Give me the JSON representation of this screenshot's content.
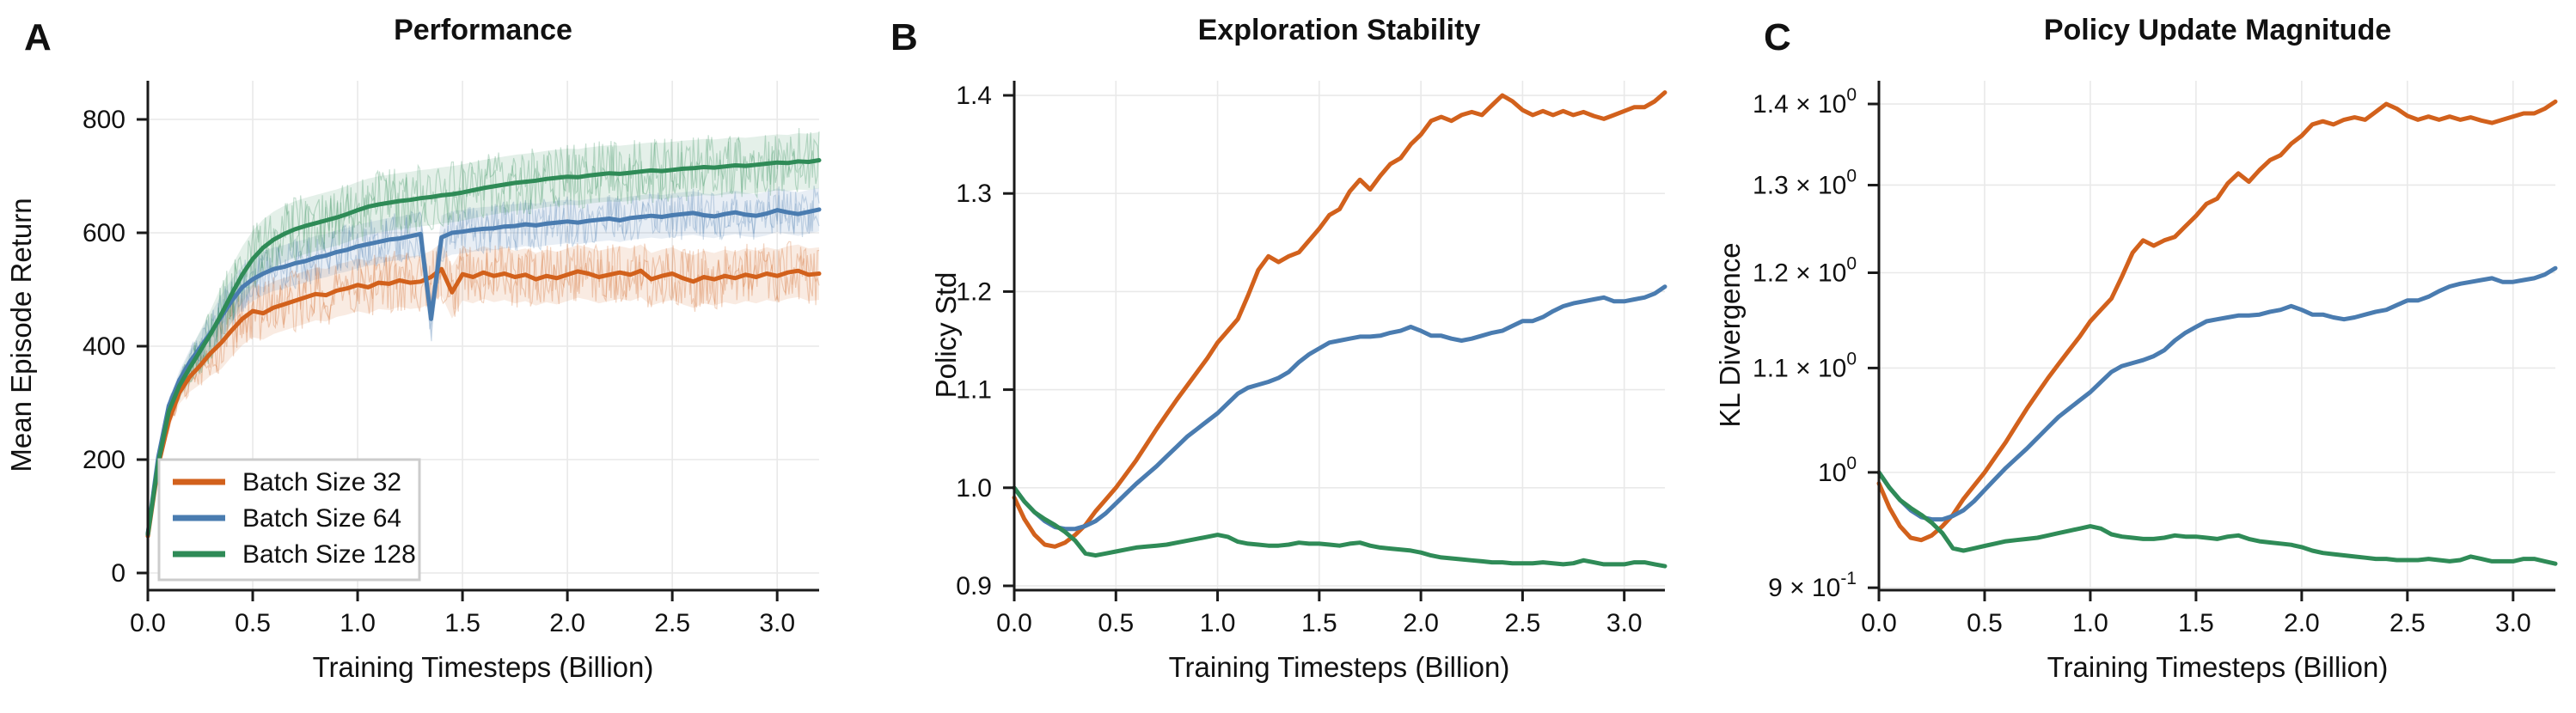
{
  "figure": {
    "background": "#ffffff",
    "grid_color": "#e9e9e9",
    "spine_color": "#1a1a1a",
    "text_color": "#111111"
  },
  "legend": {
    "position": "lower left",
    "entries": [
      {
        "label": "Batch Size 32",
        "color": "#d2611c"
      },
      {
        "label": "Batch Size 64",
        "color": "#4a7cb0"
      },
      {
        "label": "Batch Size 128",
        "color": "#2f8b57"
      }
    ]
  },
  "chart_data": [
    {
      "type": "line",
      "panel_label": "A",
      "title": "Performance",
      "xlabel": "Training Timesteps (Billion)",
      "ylabel": "Mean Episode Return",
      "yscale": "linear",
      "grid": true,
      "legend_position": "lower left",
      "xlim": [
        0,
        3.2
      ],
      "ylim": [
        -30.3,
        868.2
      ],
      "x_ticks": [
        0.0,
        0.5,
        1.0,
        1.5,
        2.0,
        2.5,
        3.0
      ],
      "x_tick_labels": [
        "0.0",
        "0.5",
        "1.0",
        "1.5",
        "2.0",
        "2.5",
        "3.0"
      ],
      "y_ticks": [
        0,
        200,
        400,
        600,
        800
      ],
      "y_tick_labels": [
        "0",
        "200",
        "400",
        "600",
        "800"
      ],
      "x": [
        0,
        0.05,
        0.1,
        0.15,
        0.2,
        0.25,
        0.3,
        0.35,
        0.4,
        0.45,
        0.5,
        0.55,
        0.6,
        0.65,
        0.7,
        0.75,
        0.8,
        0.85,
        0.9,
        0.95,
        1.0,
        1.05,
        1.1,
        1.15,
        1.2,
        1.25,
        1.3,
        1.35,
        1.4,
        1.45,
        1.5,
        1.55,
        1.6,
        1.65,
        1.7,
        1.75,
        1.8,
        1.85,
        1.9,
        1.95,
        2.0,
        2.05,
        2.1,
        2.15,
        2.2,
        2.25,
        2.3,
        2.35,
        2.4,
        2.45,
        2.5,
        2.55,
        2.6,
        2.65,
        2.7,
        2.75,
        2.8,
        2.85,
        2.9,
        2.95,
        3.0,
        3.05,
        3.1,
        3.15,
        3.2
      ],
      "series": [
        {
          "name": "Batch Size 32",
          "color": "#d2611c",
          "band_halfwidth": 58,
          "values": [
            65,
            190,
            268,
            318,
            346,
            366,
            388,
            406,
            428,
            448,
            462,
            458,
            468,
            474,
            480,
            486,
            492,
            490,
            498,
            502,
            508,
            504,
            512,
            510,
            516,
            512,
            514,
            522,
            536,
            495,
            527,
            522,
            530,
            524,
            528,
            522,
            526,
            518,
            524,
            520,
            526,
            532,
            528,
            522,
            526,
            530,
            526,
            533,
            518,
            524,
            528,
            520,
            514,
            522,
            518,
            524,
            520,
            526,
            522,
            528,
            524,
            530,
            533,
            526,
            528
          ]
        },
        {
          "name": "Batch Size 64",
          "color": "#4a7cb0",
          "band_halfwidth": 48,
          "values": [
            70,
            205,
            295,
            340,
            372,
            398,
            424,
            452,
            480,
            504,
            518,
            528,
            536,
            540,
            546,
            550,
            556,
            560,
            566,
            570,
            576,
            580,
            584,
            588,
            590,
            594,
            598,
            448,
            592,
            600,
            602,
            605,
            607,
            608,
            611,
            612,
            615,
            613,
            616,
            618,
            620,
            618,
            621,
            623,
            625,
            622,
            626,
            628,
            630,
            628,
            631,
            633,
            635,
            631,
            629,
            633,
            636,
            632,
            630,
            634,
            640,
            636,
            633,
            637,
            641
          ]
        },
        {
          "name": "Batch Size 128",
          "color": "#2f8b57",
          "band_halfwidth": 62,
          "values": [
            68,
            195,
            285,
            330,
            362,
            392,
            422,
            456,
            492,
            526,
            554,
            574,
            588,
            598,
            606,
            612,
            617,
            622,
            627,
            633,
            640,
            646,
            650,
            653,
            656,
            658,
            661,
            663,
            666,
            668,
            671,
            675,
            679,
            682,
            685,
            688,
            690,
            692,
            695,
            697,
            699,
            698,
            701,
            703,
            705,
            704,
            706,
            708,
            710,
            709,
            711,
            713,
            714,
            716,
            715,
            717,
            719,
            718,
            720,
            722,
            724,
            723,
            726,
            725,
            728
          ]
        }
      ]
    },
    {
      "type": "line",
      "panel_label": "B",
      "title": "Exploration Stability",
      "xlabel": "Training Timesteps (Billion)",
      "ylabel": "Policy Std",
      "yscale": "linear",
      "grid": true,
      "xlim": [
        0,
        3.2
      ],
      "ylim": [
        0.8956,
        1.4149
      ],
      "x_ticks": [
        0.0,
        0.5,
        1.0,
        1.5,
        2.0,
        2.5,
        3.0
      ],
      "x_tick_labels": [
        "0.0",
        "0.5",
        "1.0",
        "1.5",
        "2.0",
        "2.5",
        "3.0"
      ],
      "y_ticks": [
        0.9,
        1.0,
        1.1,
        1.2,
        1.3,
        1.4
      ],
      "y_tick_labels": [
        "0.9",
        "1.0",
        "1.1",
        "1.2",
        "1.3",
        "1.4"
      ],
      "x": [
        0,
        0.05,
        0.1,
        0.15,
        0.2,
        0.25,
        0.3,
        0.35,
        0.4,
        0.45,
        0.5,
        0.55,
        0.6,
        0.65,
        0.7,
        0.75,
        0.8,
        0.85,
        0.9,
        0.95,
        1.0,
        1.05,
        1.1,
        1.15,
        1.2,
        1.25,
        1.3,
        1.35,
        1.4,
        1.45,
        1.5,
        1.55,
        1.6,
        1.65,
        1.7,
        1.75,
        1.8,
        1.85,
        1.9,
        1.95,
        2.0,
        2.05,
        2.1,
        2.15,
        2.2,
        2.25,
        2.3,
        2.35,
        2.4,
        2.45,
        2.5,
        2.55,
        2.6,
        2.65,
        2.7,
        2.75,
        2.8,
        2.85,
        2.9,
        2.95,
        3.0,
        3.05,
        3.1,
        3.15,
        3.2
      ],
      "series": [
        {
          "name": "Batch Size 32",
          "color": "#d2611c",
          "values": [
            0.99,
            0.968,
            0.952,
            0.942,
            0.94,
            0.944,
            0.952,
            0.962,
            0.976,
            0.988,
            1.0,
            1.014,
            1.028,
            1.044,
            1.06,
            1.075,
            1.09,
            1.104,
            1.118,
            1.132,
            1.148,
            1.16,
            1.172,
            1.196,
            1.222,
            1.236,
            1.23,
            1.236,
            1.24,
            1.252,
            1.264,
            1.278,
            1.284,
            1.302,
            1.314,
            1.304,
            1.318,
            1.33,
            1.336,
            1.35,
            1.36,
            1.374,
            1.378,
            1.374,
            1.38,
            1.383,
            1.38,
            1.39,
            1.4,
            1.394,
            1.385,
            1.38,
            1.384,
            1.38,
            1.384,
            1.38,
            1.383,
            1.379,
            1.376,
            1.38,
            1.384,
            1.388,
            1.388,
            1.394,
            1.403
          ]
        },
        {
          "name": "Batch Size 64",
          "color": "#4a7cb0",
          "values": [
            1.0,
            0.986,
            0.975,
            0.966,
            0.96,
            0.958,
            0.958,
            0.961,
            0.966,
            0.974,
            0.984,
            0.994,
            1.004,
            1.013,
            1.022,
            1.032,
            1.042,
            1.052,
            1.06,
            1.068,
            1.076,
            1.086,
            1.096,
            1.102,
            1.105,
            1.108,
            1.112,
            1.118,
            1.128,
            1.136,
            1.142,
            1.148,
            1.15,
            1.152,
            1.154,
            1.154,
            1.155,
            1.158,
            1.16,
            1.164,
            1.16,
            1.155,
            1.155,
            1.152,
            1.15,
            1.152,
            1.155,
            1.158,
            1.16,
            1.165,
            1.17,
            1.17,
            1.174,
            1.18,
            1.185,
            1.188,
            1.19,
            1.192,
            1.194,
            1.19,
            1.19,
            1.192,
            1.194,
            1.198,
            1.205
          ]
        },
        {
          "name": "Batch Size 128",
          "color": "#2f8b57",
          "values": [
            1.0,
            0.986,
            0.975,
            0.968,
            0.962,
            0.955,
            0.946,
            0.933,
            0.931,
            0.933,
            0.935,
            0.937,
            0.939,
            0.94,
            0.941,
            0.942,
            0.944,
            0.946,
            0.948,
            0.95,
            0.952,
            0.95,
            0.945,
            0.943,
            0.942,
            0.941,
            0.941,
            0.942,
            0.944,
            0.943,
            0.943,
            0.942,
            0.941,
            0.943,
            0.944,
            0.941,
            0.939,
            0.938,
            0.937,
            0.936,
            0.934,
            0.931,
            0.929,
            0.928,
            0.927,
            0.926,
            0.925,
            0.924,
            0.924,
            0.923,
            0.923,
            0.923,
            0.924,
            0.923,
            0.922,
            0.923,
            0.926,
            0.924,
            0.922,
            0.922,
            0.922,
            0.924,
            0.924,
            0.922,
            0.92
          ]
        }
      ]
    },
    {
      "type": "line",
      "panel_label": "C",
      "title": "Policy Update Magnitude",
      "xlabel": "Training Timesteps (Billion)",
      "ylabel": "KL Divergence",
      "yscale": "log",
      "grid": true,
      "xlim": [
        0,
        3.2
      ],
      "ylim": [
        0.898,
        1.43
      ],
      "x_ticks": [
        0.0,
        0.5,
        1.0,
        1.5,
        2.0,
        2.5,
        3.0
      ],
      "x_tick_labels": [
        "0.0",
        "0.5",
        "1.0",
        "1.5",
        "2.0",
        "2.5",
        "3.0"
      ],
      "y_ticks": [
        0.9,
        1.0,
        1.1,
        1.2,
        1.3,
        1.4
      ],
      "y_tick_labels": [
        "9 × 10^-1",
        "10^0",
        "1.1 × 10^0",
        "1.2 × 10^0",
        "1.3 × 10^0",
        "1.4 × 10^0"
      ],
      "x": [
        0,
        0.05,
        0.1,
        0.15,
        0.2,
        0.25,
        0.3,
        0.35,
        0.4,
        0.45,
        0.5,
        0.55,
        0.6,
        0.65,
        0.7,
        0.75,
        0.8,
        0.85,
        0.9,
        0.95,
        1.0,
        1.05,
        1.1,
        1.15,
        1.2,
        1.25,
        1.3,
        1.35,
        1.4,
        1.45,
        1.5,
        1.55,
        1.6,
        1.65,
        1.7,
        1.75,
        1.8,
        1.85,
        1.9,
        1.95,
        2.0,
        2.05,
        2.1,
        2.15,
        2.2,
        2.25,
        2.3,
        2.35,
        2.4,
        2.45,
        2.5,
        2.55,
        2.6,
        2.65,
        2.7,
        2.75,
        2.8,
        2.85,
        2.9,
        2.95,
        3.0,
        3.05,
        3.1,
        3.15,
        3.2
      ],
      "series": [
        {
          "name": "Batch Size 32",
          "color": "#d2611c",
          "values": [
            0.99,
            0.968,
            0.952,
            0.942,
            0.94,
            0.944,
            0.952,
            0.962,
            0.976,
            0.988,
            1.0,
            1.014,
            1.028,
            1.044,
            1.06,
            1.075,
            1.09,
            1.104,
            1.118,
            1.132,
            1.148,
            1.16,
            1.172,
            1.196,
            1.222,
            1.236,
            1.23,
            1.236,
            1.24,
            1.252,
            1.264,
            1.278,
            1.284,
            1.302,
            1.314,
            1.304,
            1.318,
            1.33,
            1.336,
            1.35,
            1.36,
            1.374,
            1.378,
            1.374,
            1.38,
            1.383,
            1.38,
            1.39,
            1.4,
            1.394,
            1.385,
            1.38,
            1.384,
            1.38,
            1.384,
            1.38,
            1.383,
            1.379,
            1.376,
            1.38,
            1.384,
            1.388,
            1.388,
            1.394,
            1.403
          ]
        },
        {
          "name": "Batch Size 64",
          "color": "#4a7cb0",
          "values": [
            1.0,
            0.986,
            0.975,
            0.966,
            0.96,
            0.958,
            0.958,
            0.961,
            0.966,
            0.974,
            0.984,
            0.994,
            1.004,
            1.013,
            1.022,
            1.032,
            1.042,
            1.052,
            1.06,
            1.068,
            1.076,
            1.086,
            1.096,
            1.102,
            1.105,
            1.108,
            1.112,
            1.118,
            1.128,
            1.136,
            1.142,
            1.148,
            1.15,
            1.152,
            1.154,
            1.154,
            1.155,
            1.158,
            1.16,
            1.164,
            1.16,
            1.155,
            1.155,
            1.152,
            1.15,
            1.152,
            1.155,
            1.158,
            1.16,
            1.165,
            1.17,
            1.17,
            1.174,
            1.18,
            1.185,
            1.188,
            1.19,
            1.192,
            1.194,
            1.19,
            1.19,
            1.192,
            1.194,
            1.198,
            1.205
          ]
        },
        {
          "name": "Batch Size 128",
          "color": "#2f8b57",
          "values": [
            1.0,
            0.986,
            0.975,
            0.968,
            0.962,
            0.955,
            0.946,
            0.933,
            0.931,
            0.933,
            0.935,
            0.937,
            0.939,
            0.94,
            0.941,
            0.942,
            0.944,
            0.946,
            0.948,
            0.95,
            0.952,
            0.95,
            0.945,
            0.943,
            0.942,
            0.941,
            0.941,
            0.942,
            0.944,
            0.943,
            0.943,
            0.942,
            0.941,
            0.943,
            0.944,
            0.941,
            0.939,
            0.938,
            0.937,
            0.936,
            0.934,
            0.931,
            0.929,
            0.928,
            0.927,
            0.926,
            0.925,
            0.924,
            0.924,
            0.923,
            0.923,
            0.923,
            0.924,
            0.923,
            0.922,
            0.923,
            0.926,
            0.924,
            0.922,
            0.922,
            0.922,
            0.924,
            0.924,
            0.922,
            0.92
          ]
        }
      ]
    }
  ]
}
